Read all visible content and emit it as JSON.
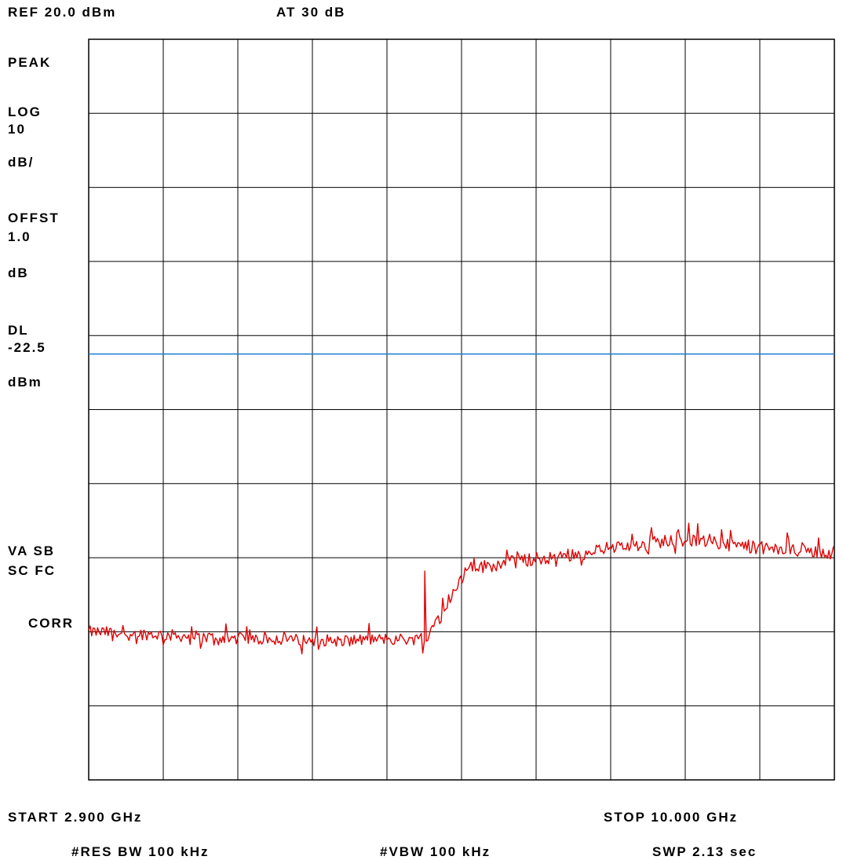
{
  "header": {
    "ref_level": "REF 20.0 dBm",
    "attenuation": "AT 30 dB"
  },
  "side_panel": {
    "detector": "PEAK",
    "scale_log": "LOG",
    "scale_value": "10",
    "scale_unit": "dB/",
    "offset_label": "OFFST",
    "offset_value": "1.0",
    "offset_unit": "dB",
    "display_line_label": "DL",
    "display_line_value": "-22.5",
    "display_line_unit": "dBm",
    "coupling_1": "VA SB",
    "coupling_2": "SC FC",
    "correction": "CORR"
  },
  "footer": {
    "start": "START 2.900 GHz",
    "stop": "STOP 10.000 GHz",
    "res_bw": "#RES BW 100 kHz",
    "vbw": "#VBW 100 kHz",
    "sweep": "SWP 2.13  sec"
  },
  "colors": {
    "trace": "#e00000",
    "display_line": "#1f7fd4",
    "grid": "#000000"
  },
  "chart_data": {
    "type": "line",
    "x_unit": "GHz",
    "y_unit": "dBm",
    "xlim": [
      2.9,
      10.0
    ],
    "ylim": [
      -80,
      20
    ],
    "scale": "log",
    "db_per_div": 10,
    "grid": true,
    "x_divisions": 10,
    "y_divisions": 10,
    "display_line": -22.5,
    "series": [
      {
        "x": [
          2.9,
          3.3,
          3.7,
          4.1,
          4.5,
          4.9,
          5.3,
          5.7,
          6.1,
          6.5,
          7.0,
          7.5,
          8.0,
          8.5,
          9.0,
          9.5,
          10.0
        ],
        "y": [
          -60.0,
          -60.2,
          -60.5,
          -60.8,
          -61.0,
          -61.1,
          -61.2,
          -61.0,
          -61.0,
          -51.5,
          -50.5,
          -49.5,
          -48.5,
          -47.5,
          -48.2,
          -49.0,
          -49.3
        ]
      }
    ]
  }
}
